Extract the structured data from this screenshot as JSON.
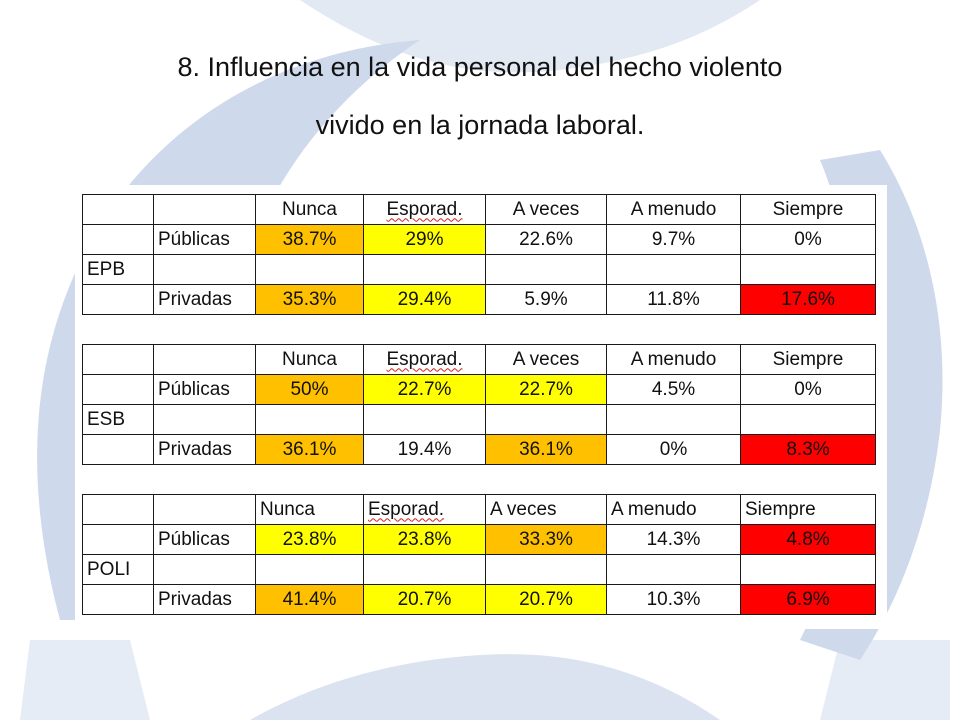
{
  "title_line1": "8. Influencia en la vida personal del hecho violento",
  "title_line2": "vivido en la jornada laboral.",
  "colors": {
    "orange": "#ffc000",
    "yellow": "#ffff00",
    "red": "#ff0000",
    "white": "#ffffff",
    "logo_blue": "#c9d5ea"
  },
  "tables": [
    {
      "group": "EPB",
      "headers": [
        "Nunca",
        "Esporad.",
        "A veces",
        "A menudo",
        "Siempre"
      ],
      "rows": [
        {
          "label": "Públicas",
          "values": [
            "38.7%",
            "29%",
            "22.6%",
            "9.7%",
            "0%"
          ]
        },
        {
          "label": "Privadas",
          "values": [
            "35.3%",
            "29.4%",
            "5.9%",
            "11.8%",
            "17.6%"
          ]
        }
      ]
    },
    {
      "group": "ESB",
      "headers": [
        "Nunca",
        "Esporad.",
        "A veces",
        "A menudo",
        "Siempre"
      ],
      "rows": [
        {
          "label": "Públicas",
          "values": [
            "50%",
            "22.7%",
            "22.7%",
            "4.5%",
            "0%"
          ]
        },
        {
          "label": "Privadas",
          "values": [
            "36.1%",
            "19.4%",
            "36.1%",
            "0%",
            "8.3%"
          ]
        }
      ]
    },
    {
      "group": "POLI",
      "headers": [
        "Nunca",
        "Esporad.",
        "A veces",
        "A menudo",
        "Siempre"
      ],
      "rows": [
        {
          "label": "Públicas",
          "values": [
            "23.8%",
            "23.8%",
            "33.3%",
            "14.3%",
            "4.8%"
          ]
        },
        {
          "label": "Privadas",
          "values": [
            "41.4%",
            "20.7%",
            "20.7%",
            "10.3%",
            "6.9%"
          ]
        }
      ]
    }
  ]
}
